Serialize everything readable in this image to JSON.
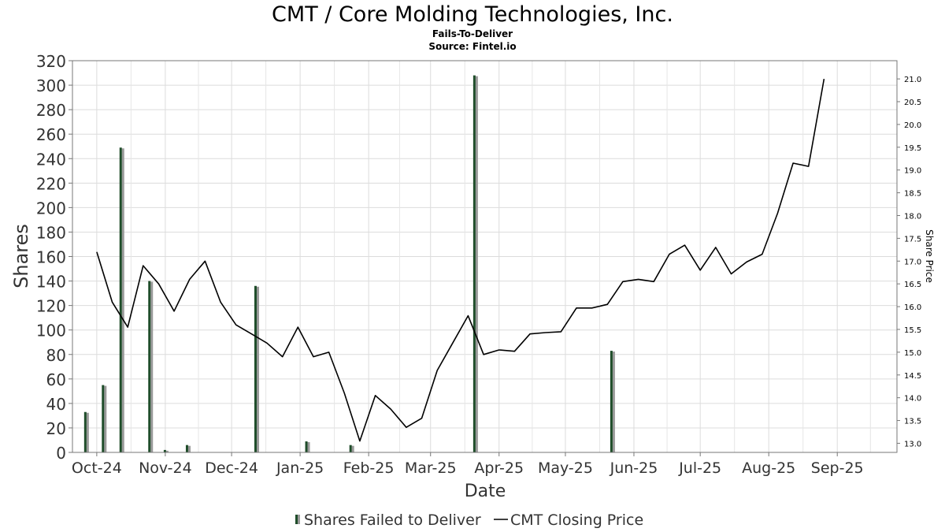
{
  "chart_data": {
    "type": "bar+line",
    "title": "CMT / Core Molding Technologies, Inc.",
    "subtitle": "Fails-To-Deliver",
    "source": "Source: Fintel.io",
    "xlabel": "Date",
    "ylabel": "Shares",
    "y2label": "Share Price",
    "ylim": [
      0,
      320
    ],
    "y2lim": [
      12.8,
      21.4
    ],
    "xlim": [
      "2024-09-20",
      "2025-09-28"
    ],
    "y_ticks": [
      0,
      20,
      40,
      60,
      80,
      100,
      120,
      140,
      160,
      180,
      200,
      220,
      240,
      260,
      280,
      300,
      320
    ],
    "y2_ticks": [
      13.0,
      13.5,
      14.0,
      14.5,
      15.0,
      15.5,
      16.0,
      16.5,
      17.0,
      17.5,
      18.0,
      18.5,
      19.0,
      19.5,
      20.0,
      20.5,
      21.0
    ],
    "x_ticks": [
      {
        "date": "2024-10-01",
        "label": "Oct-24"
      },
      {
        "date": "2024-11-01",
        "label": "Nov-24"
      },
      {
        "date": "2024-12-01",
        "label": "Dec-24"
      },
      {
        "date": "2025-01-01",
        "label": "Jan-25"
      },
      {
        "date": "2025-02-01",
        "label": "Feb-25"
      },
      {
        "date": "2025-03-01",
        "label": "Mar-25"
      },
      {
        "date": "2025-04-01",
        "label": "Apr-25"
      },
      {
        "date": "2025-05-01",
        "label": "May-25"
      },
      {
        "date": "2025-06-01",
        "label": "Jun-25"
      },
      {
        "date": "2025-07-01",
        "label": "Jul-25"
      },
      {
        "date": "2025-08-01",
        "label": "Aug-25"
      },
      {
        "date": "2025-09-01",
        "label": "Sep-25"
      }
    ],
    "grid": true,
    "legend_position": "bottom-center",
    "series": [
      {
        "name": "Shares Failed to Deliver",
        "type": "bar",
        "axis": "left",
        "color": "#1f4d2a",
        "shadow_color": "#999999",
        "points": [
          {
            "date": "2024-09-26",
            "value": 33
          },
          {
            "date": "2024-10-04",
            "value": 55
          },
          {
            "date": "2024-10-12",
            "value": 249
          },
          {
            "date": "2024-10-25",
            "value": 140
          },
          {
            "date": "2024-11-01",
            "value": 2
          },
          {
            "date": "2024-11-11",
            "value": 6
          },
          {
            "date": "2024-12-12",
            "value": 136
          },
          {
            "date": "2025-01-04",
            "value": 9
          },
          {
            "date": "2025-01-24",
            "value": 6
          },
          {
            "date": "2025-03-21",
            "value": 308
          },
          {
            "date": "2025-05-22",
            "value": 83
          }
        ]
      },
      {
        "name": "CMT Closing Price",
        "type": "line",
        "axis": "right",
        "color": "#000000",
        "points": [
          {
            "date": "2024-10-01",
            "value": 17.2
          },
          {
            "date": "2024-10-08",
            "value": 16.1
          },
          {
            "date": "2024-10-15",
            "value": 15.55
          },
          {
            "date": "2024-10-22",
            "value": 16.9
          },
          {
            "date": "2024-10-29",
            "value": 16.5
          },
          {
            "date": "2024-11-05",
            "value": 15.9
          },
          {
            "date": "2024-11-12",
            "value": 16.6
          },
          {
            "date": "2024-11-19",
            "value": 17.0
          },
          {
            "date": "2024-11-26",
            "value": 16.1
          },
          {
            "date": "2024-12-03",
            "value": 15.6
          },
          {
            "date": "2024-12-10",
            "value": 15.4
          },
          {
            "date": "2024-12-17",
            "value": 15.2
          },
          {
            "date": "2024-12-24",
            "value": 14.9
          },
          {
            "date": "2024-12-31",
            "value": 15.55
          },
          {
            "date": "2025-01-07",
            "value": 14.9
          },
          {
            "date": "2025-01-14",
            "value": 15.0
          },
          {
            "date": "2025-01-21",
            "value": 14.1
          },
          {
            "date": "2025-01-28",
            "value": 13.05
          },
          {
            "date": "2025-02-04",
            "value": 14.05
          },
          {
            "date": "2025-02-11",
            "value": 13.75
          },
          {
            "date": "2025-02-18",
            "value": 13.35
          },
          {
            "date": "2025-02-25",
            "value": 13.55
          },
          {
            "date": "2025-03-04",
            "value": 14.6
          },
          {
            "date": "2025-03-11",
            "value": 15.2
          },
          {
            "date": "2025-03-18",
            "value": 15.8
          },
          {
            "date": "2025-03-25",
            "value": 14.95
          },
          {
            "date": "2025-04-01",
            "value": 15.05
          },
          {
            "date": "2025-04-08",
            "value": 15.02
          },
          {
            "date": "2025-04-15",
            "value": 15.4
          },
          {
            "date": "2025-04-22",
            "value": 15.43
          },
          {
            "date": "2025-04-29",
            "value": 15.45
          },
          {
            "date": "2025-05-06",
            "value": 15.97
          },
          {
            "date": "2025-05-13",
            "value": 15.97
          },
          {
            "date": "2025-05-20",
            "value": 16.05
          },
          {
            "date": "2025-05-27",
            "value": 16.55
          },
          {
            "date": "2025-06-03",
            "value": 16.6
          },
          {
            "date": "2025-06-10",
            "value": 16.55
          },
          {
            "date": "2025-06-17",
            "value": 17.15
          },
          {
            "date": "2025-06-24",
            "value": 17.35
          },
          {
            "date": "2025-07-01",
            "value": 16.8
          },
          {
            "date": "2025-07-08",
            "value": 17.3
          },
          {
            "date": "2025-07-15",
            "value": 16.72
          },
          {
            "date": "2025-07-22",
            "value": 16.98
          },
          {
            "date": "2025-07-29",
            "value": 17.15
          },
          {
            "date": "2025-08-05",
            "value": 18.05
          },
          {
            "date": "2025-08-12",
            "value": 19.15
          },
          {
            "date": "2025-08-19",
            "value": 19.08
          },
          {
            "date": "2025-08-26",
            "value": 21.0
          }
        ]
      }
    ]
  }
}
